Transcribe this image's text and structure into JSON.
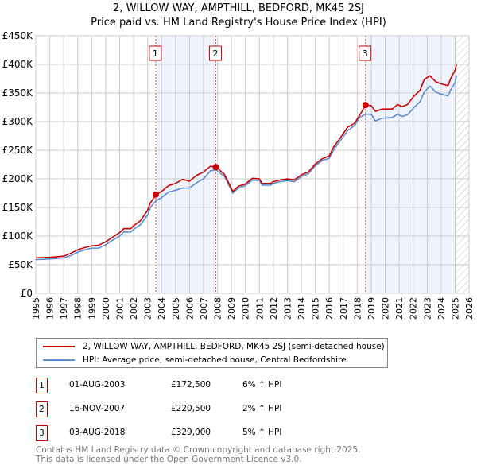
{
  "chart_data": {
    "type": "line",
    "title": "2, WILLOW WAY, AMPTHILL, BEDFORD, MK45 2SJ",
    "subtitle": "Price paid vs. HM Land Registry's House Price Index (HPI)",
    "xlim": [
      1995,
      2026
    ],
    "ylim": [
      0,
      450000
    ],
    "yticks": [
      {
        "v": 0,
        "label": "£0"
      },
      {
        "v": 50000,
        "label": "£50K"
      },
      {
        "v": 100000,
        "label": "£100K"
      },
      {
        "v": 150000,
        "label": "£150K"
      },
      {
        "v": 200000,
        "label": "£200K"
      },
      {
        "v": 250000,
        "label": "£250K"
      },
      {
        "v": 300000,
        "label": "£300K"
      },
      {
        "v": 350000,
        "label": "£350K"
      },
      {
        "v": 400000,
        "label": "£400K"
      },
      {
        "v": 450000,
        "label": "£450K"
      }
    ],
    "xticks": [
      "1995",
      "1996",
      "1997",
      "1998",
      "1999",
      "2000",
      "2001",
      "2002",
      "2003",
      "2004",
      "2005",
      "2006",
      "2007",
      "2008",
      "2009",
      "2010",
      "2011",
      "2012",
      "2013",
      "2014",
      "2015",
      "2016",
      "2017",
      "2018",
      "2019",
      "2020",
      "2021",
      "2022",
      "2023",
      "2024",
      "2025",
      "2026"
    ],
    "x": [
      1995,
      1996,
      1997,
      1997.5,
      1998,
      1998.5,
      1999,
      1999.5,
      2000,
      2000.5,
      2001,
      2001.3,
      2001.8,
      2002,
      2002.5,
      2003,
      2003.2,
      2003.6,
      2004,
      2004.5,
      2005,
      2005.5,
      2006,
      2006.5,
      2007,
      2007.5,
      2007.9,
      2008.5,
      2009.1,
      2009.5,
      2010,
      2010.5,
      2011,
      2011.2,
      2011.8,
      2012,
      2012.5,
      2013,
      2013.5,
      2014,
      2014.5,
      2015,
      2015.5,
      2016,
      2016.3,
      2016.8,
      2017.3,
      2017.8,
      2018.2,
      2018.6,
      2019,
      2019.3,
      2019.8,
      2020.5,
      2020.9,
      2021.2,
      2021.6,
      2022,
      2022.5,
      2022.8,
      2023.2,
      2023.6,
      2024,
      2024.5,
      2024.7,
      2025,
      2025.1
    ],
    "series": [
      {
        "name": "2, WILLOW WAY, AMPTHILL, BEDFORD, MK45 2SJ (semi-detached house)",
        "color": "#cc0000",
        "values": [
          62,
          63,
          65,
          70,
          76,
          80,
          83,
          84,
          90,
          98,
          106,
          113,
          113,
          118,
          127,
          145,
          158,
          172.5,
          178,
          188,
          192,
          199,
          196,
          206,
          212,
          222,
          220.5,
          208,
          178,
          187,
          191,
          201,
          200,
          192,
          192,
          195,
          198,
          200,
          198,
          207,
          212,
          226,
          235,
          240,
          255,
          272,
          290,
          297,
          312,
          329,
          328,
          318,
          322,
          322,
          330,
          326,
          330,
          343,
          355,
          374,
          380,
          370,
          366,
          363,
          376,
          390,
          400
        ]
      },
      {
        "name": "HPI: Average price, semi-detached house, Central Bedfordshire",
        "color": "#5b8fd4",
        "values": [
          59,
          60,
          62,
          66,
          72,
          76,
          79,
          79,
          85,
          93,
          100,
          107,
          107,
          112,
          120,
          137,
          150,
          162,
          167,
          177,
          180,
          184,
          184,
          193,
          200,
          214,
          216,
          204,
          175,
          184,
          188,
          198,
          197,
          189,
          189,
          192,
          195,
          197,
          195,
          204,
          209,
          223,
          232,
          236,
          250,
          267,
          284,
          293,
          308,
          313,
          313,
          301,
          306,
          307,
          313,
          309,
          312,
          323,
          335,
          352,
          362,
          352,
          348,
          345,
          356,
          368,
          380
        ]
      }
    ],
    "value_unit": "thousands GBP",
    "sales": [
      {
        "n": "1",
        "date": "01-AUG-2003",
        "x": 2003.58,
        "price": "£172,500",
        "value": 172.5,
        "hpi": "6% ↑ HPI"
      },
      {
        "n": "2",
        "date": "16-NOV-2007",
        "x": 2007.88,
        "price": "£220,500",
        "value": 220.5,
        "hpi": "2% ↑ HPI"
      },
      {
        "n": "3",
        "date": "03-AUG-2018",
        "x": 2018.59,
        "price": "£329,000",
        "value": 329,
        "hpi": "5% ↑ HPI"
      }
    ],
    "shaded": [
      [
        2003.58,
        2007.88
      ],
      [
        2018.59,
        2025.0
      ]
    ],
    "hatched_from": 2025.0
  },
  "footer": [
    "Contains HM Land Registry data © Crown copyright and database right 2025.",
    "This data is licensed under the Open Government Licence v3.0."
  ]
}
